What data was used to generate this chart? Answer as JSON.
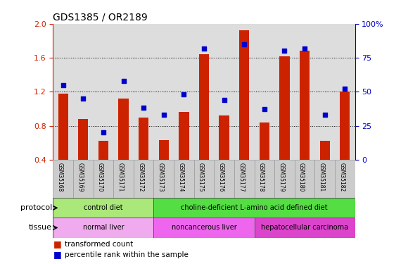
{
  "title": "GDS1385 / OR2189",
  "samples": [
    "GSM35168",
    "GSM35169",
    "GSM35170",
    "GSM35171",
    "GSM35172",
    "GSM35173",
    "GSM35174",
    "GSM35175",
    "GSM35176",
    "GSM35177",
    "GSM35178",
    "GSM35179",
    "GSM35180",
    "GSM35181",
    "GSM35182"
  ],
  "bar_values": [
    1.18,
    0.88,
    0.62,
    1.12,
    0.9,
    0.63,
    0.96,
    1.64,
    0.92,
    1.92,
    0.84,
    1.62,
    1.68,
    0.62,
    1.2
  ],
  "dot_values": [
    55,
    45,
    20,
    58,
    38,
    33,
    48,
    82,
    44,
    85,
    37,
    80,
    82,
    33,
    52
  ],
  "bar_color": "#cc2200",
  "dot_color": "#0000cc",
  "ylim_left": [
    0.4,
    2.0
  ],
  "ylim_right": [
    0,
    100
  ],
  "yticks_left": [
    0.4,
    0.8,
    1.2,
    1.6,
    2.0
  ],
  "yticks_right": [
    0,
    25,
    50,
    75,
    100
  ],
  "ytick_labels_right": [
    "0",
    "25",
    "50",
    "75",
    "100%"
  ],
  "protocol_groups": [
    {
      "label": "control diet",
      "start": 0,
      "end": 4,
      "color": "#aae87a"
    },
    {
      "label": "choline-deficient L-amino acid defined diet",
      "start": 5,
      "end": 14,
      "color": "#55dd44"
    }
  ],
  "tissue_groups": [
    {
      "label": "normal liver",
      "start": 0,
      "end": 4,
      "color": "#f0aaee"
    },
    {
      "label": "noncancerous liver",
      "start": 5,
      "end": 9,
      "color": "#ee66ee"
    },
    {
      "label": "hepatocellular carcinoma",
      "start": 10,
      "end": 14,
      "color": "#dd44cc"
    }
  ],
  "legend_bar_label": "transformed count",
  "legend_dot_label": "percentile rank within the sample",
  "protocol_label": "protocol",
  "tissue_label": "tissue",
  "background_color": "#ffffff",
  "plot_bg_color": "#dddddd",
  "bar_width": 0.5,
  "grid_lines": [
    0.8,
    1.2,
    1.6
  ]
}
